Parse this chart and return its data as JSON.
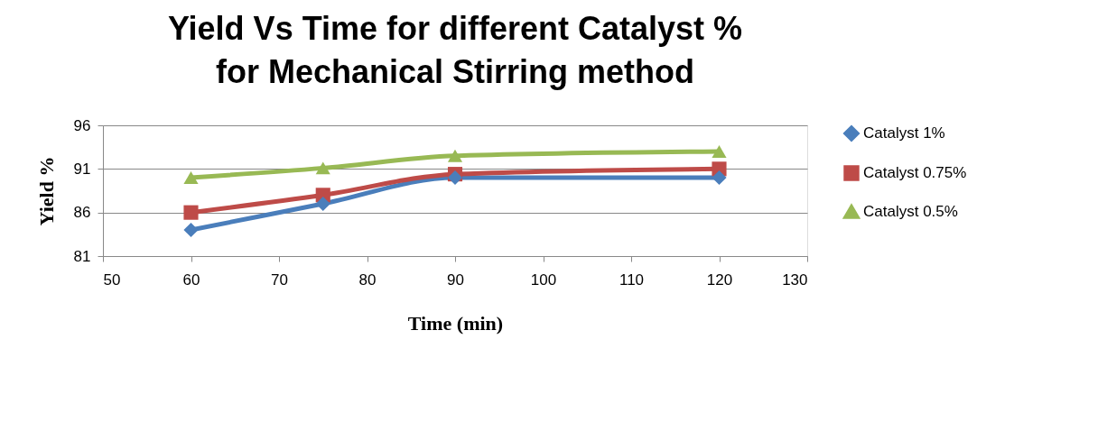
{
  "chart_data": {
    "type": "line",
    "title": "Yield  Vs Time for different Catalyst % for Mechanical Stirring method",
    "xlabel": "Time (min)",
    "ylabel": "Yield %",
    "x": [
      60,
      75,
      90,
      120
    ],
    "series": [
      {
        "name": "Catalyst 1%",
        "color": "#4a7ebb",
        "marker": "diamond",
        "values": [
          84,
          87,
          90,
          90
        ]
      },
      {
        "name": "Catalyst 0.75%",
        "color": "#be4b48",
        "marker": "square",
        "values": [
          86,
          88,
          90.4,
          91
        ]
      },
      {
        "name": "Catalyst 0.5%",
        "color": "#98b954",
        "marker": "triangle",
        "values": [
          90,
          91.1,
          92.5,
          93
        ]
      }
    ],
    "xlim": [
      50,
      130
    ],
    "xticks": [
      50,
      60,
      70,
      80,
      90,
      100,
      110,
      120,
      130
    ],
    "ylim": [
      81,
      96
    ],
    "yticks": [
      81,
      86,
      91,
      96
    ],
    "grid": "y",
    "legend": "right",
    "line_style": "solid"
  }
}
